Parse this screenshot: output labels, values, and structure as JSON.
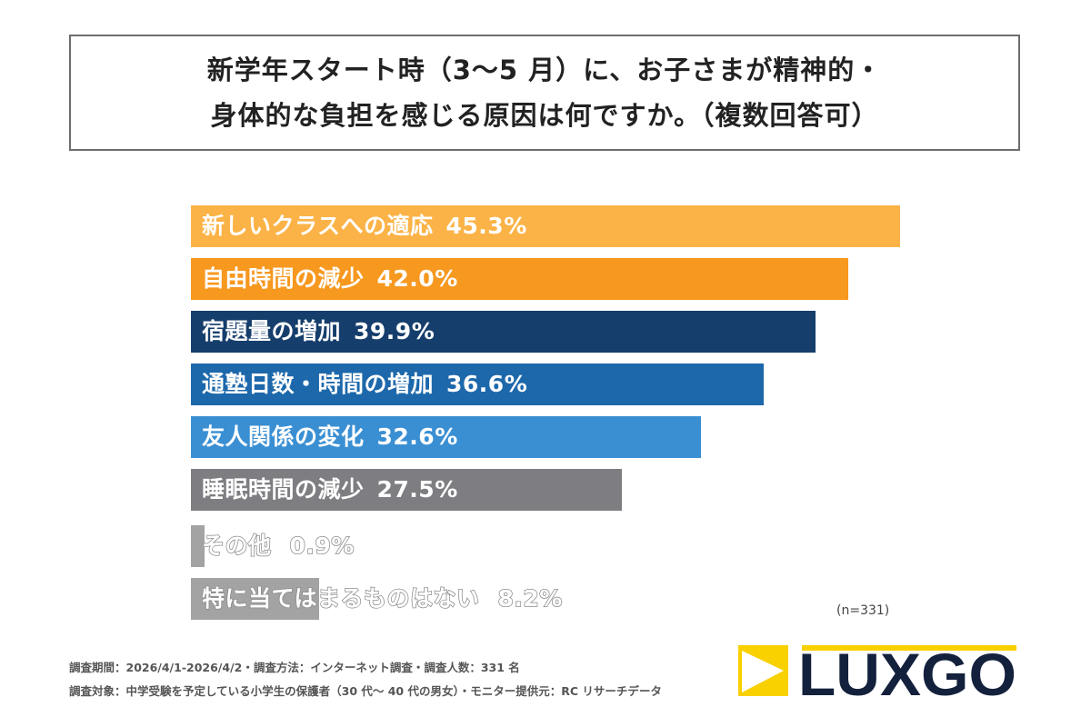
{
  "title_lines": [
    "新学年スタート時（3〜5 月）に、お子さまが精神的・",
    "身体的な負担を感じる原因は何ですか。（複数回答可）"
  ],
  "chart_data": {
    "type": "bar",
    "orientation": "horizontal",
    "categories": [
      "新しいクラスへの適応",
      "自由時間の減少",
      "宿題量の増加",
      "通塾日数・時間の増加",
      "友人関係の変化",
      "睡眠時間の減少",
      "その他",
      "特に当てはまるものはない"
    ],
    "values": [
      45.3,
      42.0,
      39.9,
      36.6,
      32.6,
      27.5,
      0.9,
      8.2
    ],
    "value_labels": [
      "45.3%",
      "42.0%",
      "39.9%",
      "36.6%",
      "32.6%",
      "27.5%",
      "0.9%",
      "8.2%"
    ],
    "colors": [
      "#fbb347",
      "#f7981f",
      "#163e6c",
      "#1d68ab",
      "#3a8fd3",
      "#7e7d81",
      "#a3a3a3",
      "#a3a3a3"
    ],
    "unit": "%",
    "xlim": [
      0,
      45.3
    ]
  },
  "sample_size": "(n=331)",
  "notes": [
    "調査期間：2026/4/1-2026/4/2・調査方法：インターネット調査・調査人数：331 名",
    "調査対象：中学受験を予定している小学生の保護者（30 代〜 40 代の男女）・モニター提供元：RC リサーチデータ"
  ],
  "logo": {
    "text": "LUXGO",
    "colors": {
      "yellow": "#f9d000",
      "navy": "#14213d"
    }
  }
}
